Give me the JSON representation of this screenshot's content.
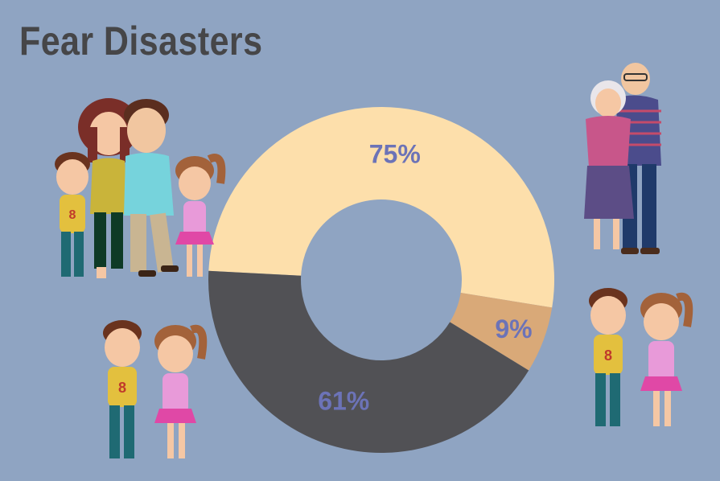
{
  "chart_data": {
    "type": "pie",
    "title": "Fear Disasters",
    "slices": [
      {
        "label": "75%",
        "value": 75,
        "color": "#fddfab"
      },
      {
        "label": "9%",
        "value": 9,
        "color": "#d9a978"
      },
      {
        "label": "61%",
        "value": 61,
        "color": "#515155"
      }
    ],
    "donut": true,
    "legend": "none"
  },
  "illustrations": {
    "family": "family-of-four-illustration",
    "grandparents": "elderly-couple-illustration",
    "kids_left": "boy-and-girl-illustration",
    "kids_right": "boy-and-girl-illustration"
  },
  "colors": {
    "background": "#8fa4c2",
    "title": "#464648",
    "labels": "#6c73b7"
  }
}
